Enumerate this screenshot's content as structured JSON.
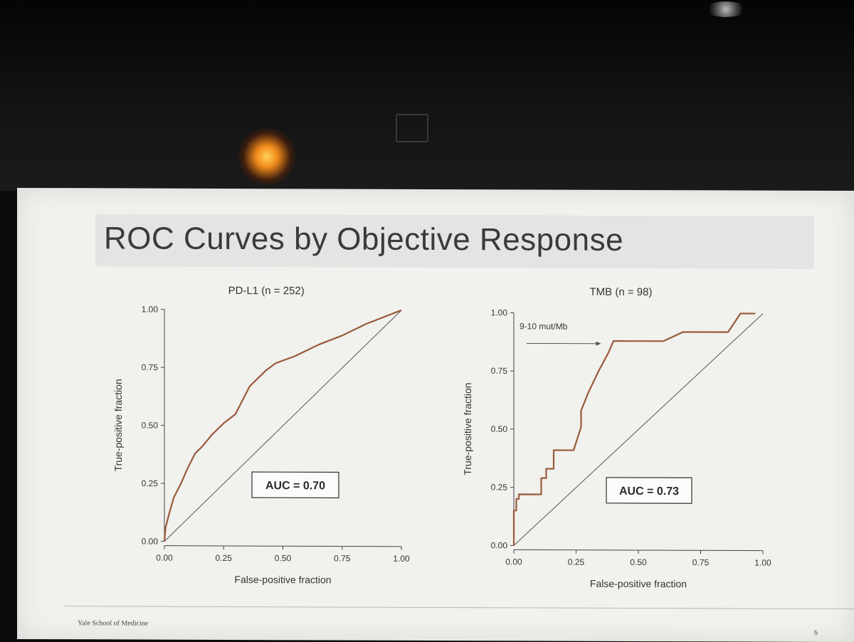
{
  "slide": {
    "title": "ROC Curves by Objective Response",
    "footer": "Yale School of Medicine",
    "page_number": "5"
  },
  "colors": {
    "curve": "#9a5a3c",
    "diagonal": "#555555",
    "axis": "#444444",
    "text": "#333333"
  },
  "chart_data": [
    {
      "type": "line",
      "title": "PD-L1 (n = 252)",
      "xlabel": "False-positive fraction",
      "ylabel": "True-positive fraction",
      "xlim": [
        0,
        1
      ],
      "ylim": [
        0,
        1
      ],
      "xticks": [
        "0.00",
        "0.25",
        "0.50",
        "0.75",
        "1.00"
      ],
      "yticks": [
        "0.00",
        "0.25",
        "0.50",
        "0.75",
        "1.00"
      ],
      "grid": false,
      "annotation": "AUC = 0.70",
      "reference_line": [
        [
          0,
          0
        ],
        [
          1,
          1
        ]
      ],
      "series": [
        {
          "x": [
            0.0,
            0.005,
            0.02,
            0.04,
            0.07,
            0.1,
            0.13,
            0.16,
            0.2,
            0.25,
            0.3,
            0.33,
            0.36,
            0.39,
            0.43,
            0.47,
            0.55,
            0.65,
            0.75,
            0.85,
            1.0
          ],
          "y": [
            0.0,
            0.06,
            0.12,
            0.19,
            0.25,
            0.32,
            0.38,
            0.41,
            0.46,
            0.51,
            0.55,
            0.61,
            0.67,
            0.7,
            0.74,
            0.77,
            0.8,
            0.85,
            0.89,
            0.94,
            1.0
          ]
        }
      ]
    },
    {
      "type": "line",
      "title": "TMB (n = 98)",
      "xlabel": "False-positive fraction",
      "ylabel": "True-positive fraction",
      "xlim": [
        0,
        1
      ],
      "ylim": [
        0,
        1
      ],
      "xticks": [
        "0.00",
        "0.25",
        "0.50",
        "0.75",
        "1.00"
      ],
      "yticks": [
        "0.00",
        "0.25",
        "0.50",
        "0.75",
        "1.00"
      ],
      "grid": false,
      "annotation": "AUC = 0.73",
      "arrow_label": "9-10 mut/Mb",
      "reference_line": [
        [
          0,
          0
        ],
        [
          1,
          1
        ]
      ],
      "series": [
        {
          "x": [
            0.0,
            0.0,
            0.01,
            0.01,
            0.02,
            0.02,
            0.11,
            0.11,
            0.13,
            0.13,
            0.16,
            0.16,
            0.24,
            0.27,
            0.27,
            0.3,
            0.34,
            0.38,
            0.4,
            0.6,
            0.68,
            0.86,
            0.91,
            0.97
          ],
          "y": [
            0.0,
            0.15,
            0.15,
            0.2,
            0.2,
            0.22,
            0.22,
            0.29,
            0.29,
            0.33,
            0.33,
            0.41,
            0.41,
            0.51,
            0.58,
            0.66,
            0.75,
            0.83,
            0.88,
            0.88,
            0.92,
            0.92,
            1.0,
            1.0
          ]
        }
      ]
    }
  ]
}
